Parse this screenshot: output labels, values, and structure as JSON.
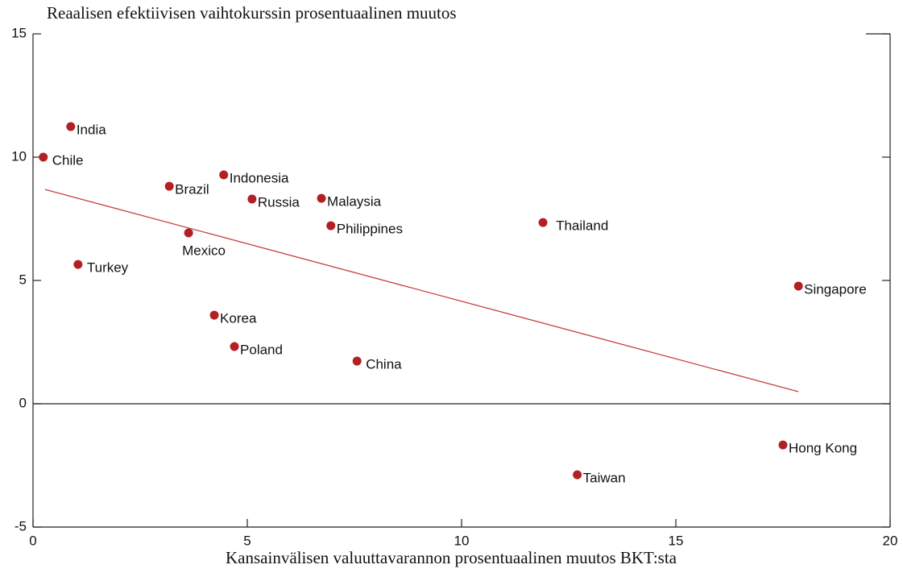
{
  "chart_data": {
    "type": "scatter",
    "title": "Reaalisen efektiivisen vaihtokurssin prosentuaalinen muutos",
    "xlabel": "Kansainvälisen valuuttavarannon prosentuaalinen muutos BKT:sta",
    "point_labels": [
      "India",
      "Chile",
      "Brazil",
      "Indonesia",
      "Russia",
      "Malaysia",
      "Philippines",
      "Thailand",
      "Mexico",
      "Turkey",
      "Singapore",
      "Korea",
      "Poland",
      "China",
      "Hong Kong",
      "Taiwan"
    ],
    "x": [
      0.88,
      0.24,
      3.18,
      4.45,
      5.11,
      6.73,
      6.95,
      11.9,
      3.63,
      1.05,
      17.86,
      4.23,
      4.7,
      7.56,
      17.5,
      12.7
    ],
    "values": [
      11.24,
      10.0,
      8.82,
      9.28,
      8.3,
      8.33,
      7.22,
      7.35,
      6.93,
      5.65,
      4.77,
      3.59,
      2.32,
      1.73,
      -1.67,
      -2.88
    ],
    "color": "#b22025",
    "trendline": {
      "x": [
        0.28,
        17.86
      ],
      "values": [
        8.69,
        0.49
      ],
      "color": "#c8403f"
    },
    "xlim": [
      0,
      20
    ],
    "xticks": [
      0,
      5,
      10,
      15,
      20
    ],
    "ylim": [
      -5,
      15
    ],
    "yticks": [
      -5,
      0,
      5,
      10,
      15
    ]
  }
}
